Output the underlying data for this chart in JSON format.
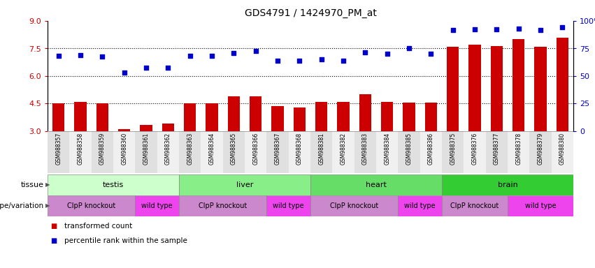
{
  "title": "GDS4791 / 1424970_PM_at",
  "samples": [
    "GSM988357",
    "GSM988358",
    "GSM988359",
    "GSM988360",
    "GSM988361",
    "GSM988362",
    "GSM988363",
    "GSM988364",
    "GSM988365",
    "GSM988366",
    "GSM988367",
    "GSM988368",
    "GSM988381",
    "GSM988382",
    "GSM988383",
    "GSM988384",
    "GSM988385",
    "GSM988386",
    "GSM988375",
    "GSM988376",
    "GSM988377",
    "GSM988378",
    "GSM988379",
    "GSM988380"
  ],
  "bar_values": [
    4.5,
    4.6,
    4.5,
    3.1,
    3.35,
    3.4,
    4.5,
    4.5,
    4.9,
    4.9,
    4.35,
    4.3,
    4.6,
    4.6,
    5.0,
    4.6,
    4.55,
    4.55,
    7.6,
    7.7,
    7.65,
    8.0,
    7.6,
    8.1
  ],
  "scatter_values": [
    7.1,
    7.15,
    7.05,
    6.2,
    6.45,
    6.45,
    7.1,
    7.1,
    7.25,
    7.35,
    6.85,
    6.85,
    6.9,
    6.85,
    7.3,
    7.2,
    7.5,
    7.2,
    8.5,
    8.55,
    8.55,
    8.6,
    8.5,
    8.65
  ],
  "bar_color": "#cc0000",
  "scatter_color": "#0000cc",
  "ylim_left": [
    3,
    9
  ],
  "ylim_right": [
    0,
    100
  ],
  "yticks_left": [
    3,
    4.5,
    6,
    7.5,
    9
  ],
  "yticks_right": [
    0,
    25,
    50,
    75,
    100
  ],
  "hlines": [
    4.5,
    6.0,
    7.5
  ],
  "tissue_groups": [
    {
      "label": "testis",
      "start": 0,
      "end": 6,
      "color": "#ccffcc"
    },
    {
      "label": "liver",
      "start": 6,
      "end": 12,
      "color": "#88ee88"
    },
    {
      "label": "heart",
      "start": 12,
      "end": 18,
      "color": "#66dd66"
    },
    {
      "label": "brain",
      "start": 18,
      "end": 24,
      "color": "#33cc33"
    }
  ],
  "genotype_groups": [
    {
      "label": "ClpP knockout",
      "start": 0,
      "end": 4,
      "color": "#cc88cc"
    },
    {
      "label": "wild type",
      "start": 4,
      "end": 6,
      "color": "#ee44ee"
    },
    {
      "label": "ClpP knockout",
      "start": 6,
      "end": 10,
      "color": "#cc88cc"
    },
    {
      "label": "wild type",
      "start": 10,
      "end": 12,
      "color": "#ee44ee"
    },
    {
      "label": "ClpP knockout",
      "start": 12,
      "end": 16,
      "color": "#cc88cc"
    },
    {
      "label": "wild type",
      "start": 16,
      "end": 18,
      "color": "#ee44ee"
    },
    {
      "label": "ClpP knockout",
      "start": 18,
      "end": 21,
      "color": "#cc88cc"
    },
    {
      "label": "wild type",
      "start": 21,
      "end": 24,
      "color": "#ee44ee"
    }
  ],
  "legend_items": [
    {
      "label": "transformed count",
      "color": "#cc0000"
    },
    {
      "label": "percentile rank within the sample",
      "color": "#0000cc"
    }
  ],
  "tissue_label": "tissue",
  "genotype_label": "genotype/variation",
  "background_color": "#ffffff",
  "plot_bg_color": "#ffffff",
  "xtick_bg_even": "#e0e0e0",
  "xtick_bg_odd": "#f0f0f0"
}
